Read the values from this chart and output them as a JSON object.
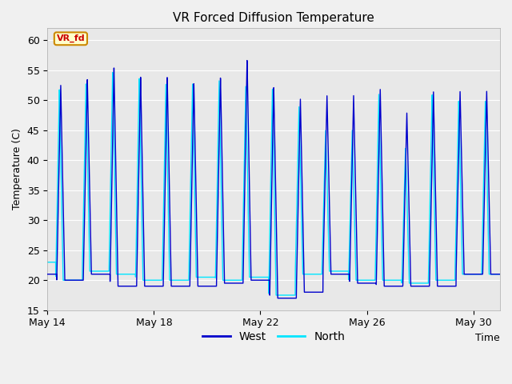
{
  "title": "VR Forced Diffusion Temperature",
  "xlabel": "Time",
  "ylabel": "Temperature (C)",
  "ylim": [
    15,
    62
  ],
  "xlim": [
    0,
    17
  ],
  "xtick_days": [
    0,
    4,
    8,
    12,
    16
  ],
  "xtick_labels": [
    "May 14",
    "May 18",
    "May 22",
    "May 26",
    "May 30"
  ],
  "yticks": [
    15,
    20,
    25,
    30,
    35,
    40,
    45,
    50,
    55,
    60
  ],
  "west_color": "#0000cc",
  "north_color": "#00e5ff",
  "plot_bg": "#e8e8e8",
  "fig_bg": "#f0f0f0",
  "annotation_text": "VR_fd",
  "annotation_color": "#cc0000",
  "annotation_bg": "#ffffcc",
  "annotation_edge": "#cc8800",
  "legend_west": "West",
  "legend_north": "North",
  "title_fontsize": 11,
  "axis_fontsize": 9,
  "legend_fontsize": 10
}
